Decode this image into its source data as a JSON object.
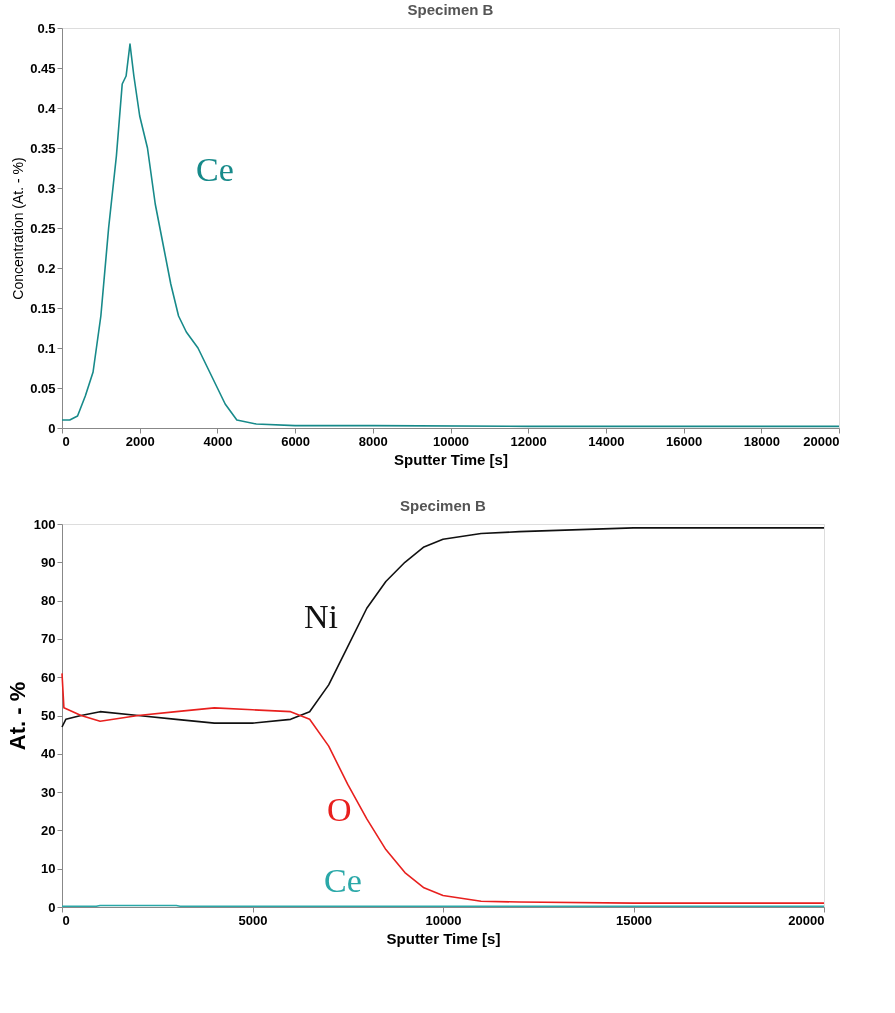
{
  "chart_data": [
    {
      "type": "line",
      "title": "Specimen B",
      "xlabel": "Sputter Time [s]",
      "ylabel": "Concentration (At. - %)",
      "xlim": [
        0,
        20000
      ],
      "xticks": [
        0,
        2000,
        4000,
        6000,
        8000,
        10000,
        12000,
        14000,
        16000,
        18000,
        20000
      ],
      "ylim": [
        0,
        0.5
      ],
      "yticks": [
        0,
        0.05,
        0.1,
        0.15,
        0.2,
        0.25,
        0.3,
        0.35,
        0.4,
        0.45,
        0.5
      ],
      "grid": false,
      "legend": false,
      "series": [
        {
          "name": "Ce",
          "color": "#178a8a",
          "x": [
            0,
            200,
            400,
            600,
            800,
            1000,
            1200,
            1400,
            1550,
            1650,
            1750,
            1850,
            2000,
            2200,
            2400,
            2600,
            2800,
            3000,
            3200,
            3500,
            3800,
            4000,
            4200,
            4500,
            5000,
            6000,
            8000,
            12000,
            16000,
            20000
          ],
          "values": [
            0.01,
            0.01,
            0.015,
            0.04,
            0.07,
            0.14,
            0.25,
            0.34,
            0.43,
            0.44,
            0.48,
            0.44,
            0.39,
            0.35,
            0.28,
            0.23,
            0.18,
            0.14,
            0.12,
            0.1,
            0.07,
            0.05,
            0.03,
            0.01,
            0.005,
            0.003,
            0.003,
            0.002,
            0.002,
            0.002
          ]
        }
      ]
    },
    {
      "type": "line",
      "title": "Specimen B",
      "xlabel": "Sputter Time [s]",
      "ylabel": "At. - %",
      "xlim": [
        0,
        20000
      ],
      "xticks": [
        0,
        5000,
        10000,
        15000,
        20000
      ],
      "ylim": [
        0,
        100
      ],
      "yticks": [
        0,
        10,
        20,
        30,
        40,
        50,
        60,
        70,
        80,
        90,
        100
      ],
      "grid": false,
      "legend": false,
      "series": [
        {
          "name": "Ni",
          "color": "#111111",
          "x": [
            0,
            100,
            500,
            1000,
            2000,
            3000,
            4000,
            5000,
            6000,
            6500,
            7000,
            7500,
            8000,
            8500,
            9000,
            9500,
            10000,
            11000,
            12000,
            15000,
            20000
          ],
          "values": [
            47,
            49,
            50,
            51,
            50,
            49,
            48,
            48,
            49,
            51,
            58,
            68,
            78,
            85,
            90,
            94,
            96,
            97.5,
            98,
            99,
            99
          ]
        },
        {
          "name": "O",
          "color": "#e8201e",
          "x": [
            0,
            50,
            500,
            1000,
            2000,
            3000,
            4000,
            5000,
            6000,
            6500,
            7000,
            7500,
            8000,
            8500,
            9000,
            9500,
            10000,
            11000,
            12000,
            15000,
            20000
          ],
          "values": [
            61,
            52,
            50,
            48.5,
            50,
            51,
            52,
            51.5,
            51,
            49,
            42,
            32,
            23,
            15,
            9,
            5,
            3,
            1.5,
            1.3,
            1,
            1
          ]
        },
        {
          "name": "Ce",
          "color": "#2aa8a8",
          "x": [
            0,
            900,
            1000,
            3000,
            3100,
            20000
          ],
          "values": [
            0.2,
            0.2,
            0.4,
            0.4,
            0.2,
            0.2
          ]
        }
      ]
    }
  ]
}
